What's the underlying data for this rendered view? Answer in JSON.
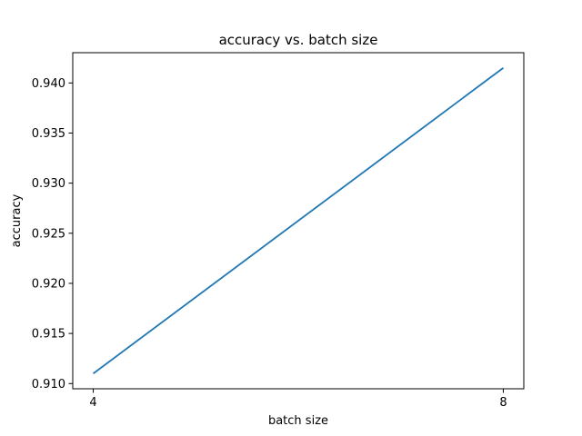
{
  "chart_data": {
    "type": "line",
    "title": "accuracy vs. batch size",
    "xlabel": "batch size",
    "ylabel": "accuracy",
    "x": [
      4,
      8
    ],
    "series": [
      {
        "values": [
          0.911,
          0.9415
        ],
        "color": "#1f77b4"
      }
    ],
    "xticks": [
      4,
      8
    ],
    "xtick_labels": [
      "4",
      "8"
    ],
    "yticks": [
      0.91,
      0.915,
      0.92,
      0.925,
      0.93,
      0.935,
      0.94
    ],
    "ytick_labels": [
      "0.910",
      "0.915",
      "0.920",
      "0.925",
      "0.930",
      "0.935",
      "0.940"
    ],
    "xlim": [
      3.8,
      8.2
    ],
    "ylim": [
      0.90948,
      0.94302
    ],
    "grid": false,
    "legend": "none"
  }
}
